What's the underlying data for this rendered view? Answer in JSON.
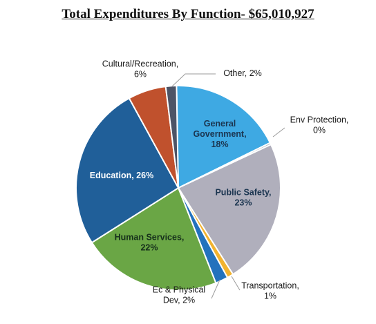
{
  "chart_data": {
    "type": "pie",
    "title": "Total Expenditures By Function- $65,010,927",
    "slices": [
      {
        "name": "General Government",
        "label_lines": [
          "General",
          "Government,",
          "18%"
        ],
        "value": 18,
        "color": "#3ea9e3"
      },
      {
        "name": "Env Protection",
        "label_lines": [
          "Env Protection,",
          "0%"
        ],
        "value": 0.3,
        "color": "#9aa7b3"
      },
      {
        "name": "Public Safety",
        "label_lines": [
          "Public Safety,",
          "23%"
        ],
        "value": 23,
        "color": "#b0afbc"
      },
      {
        "name": "Transportation",
        "label_lines": [
          "Transportation,",
          "1%"
        ],
        "value": 1,
        "color": "#f2b32f"
      },
      {
        "name": "Ec & Physical Dev",
        "label_lines": [
          "Ec & Physical",
          "Dev, 2%"
        ],
        "value": 2,
        "color": "#2372bd"
      },
      {
        "name": "Human Services",
        "label_lines": [
          "Human Services,",
          "22%"
        ],
        "value": 22,
        "color": "#6aa645"
      },
      {
        "name": "Education",
        "label_lines": [
          "Education, 26%"
        ],
        "value": 26,
        "color": "#205f99"
      },
      {
        "name": "Cultural/Recreation",
        "label_lines": [
          "Cultural/Recreation,",
          "6%"
        ],
        "value": 6,
        "color": "#c0512d"
      },
      {
        "name": "Other",
        "label_lines": [
          "Other, 2%"
        ],
        "value": 1.7,
        "color": "#4d5466"
      }
    ]
  }
}
